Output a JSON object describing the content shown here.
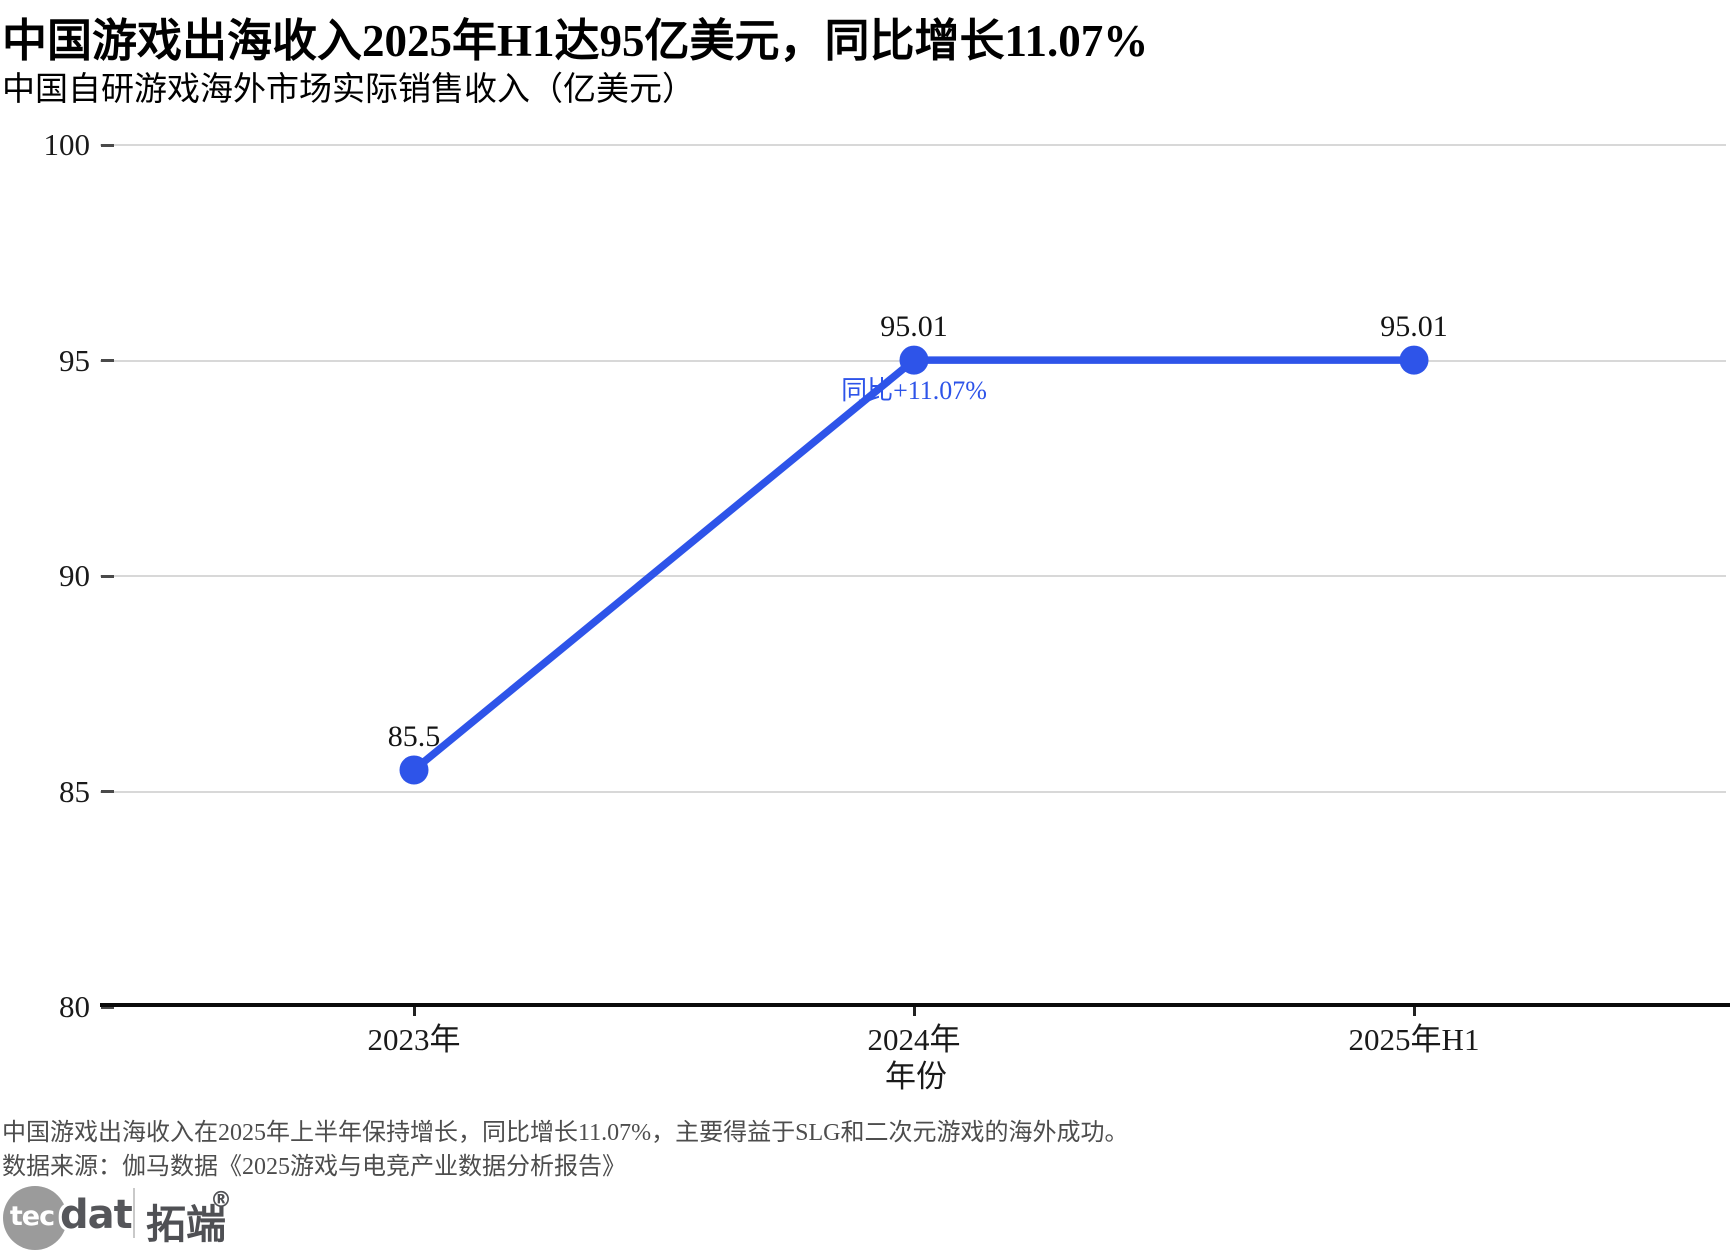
{
  "header": {
    "title": "中国游戏出海收入2025年H1达95亿美元，同比增长11.07%",
    "subtitle": "中国自研游戏海外市场实际销售收入（亿美元）"
  },
  "chart_data": {
    "type": "line",
    "categories": [
      "2023年",
      "2024年",
      "2025年H1"
    ],
    "values": [
      85.5,
      95.01,
      95.01
    ],
    "point_labels": [
      "85.5",
      "95.01",
      "95.01"
    ],
    "xlabel": "年份",
    "ylim": [
      80,
      100
    ],
    "yticks": [
      80,
      85,
      90,
      95,
      100
    ],
    "grid": "horizontal",
    "legend": "none",
    "series_color": "#2E54E9",
    "annotation": {
      "text": "同比+11.07%",
      "anchor_index": 1,
      "color": "#2E54E9"
    }
  },
  "footer": {
    "note": "中国游戏出海收入在2025年上半年保持增长，同比增长11.07%，主要得益于SLG和二次元游戏的海外成功。",
    "source": "数据来源：伽马数据《2025游戏与电竞产业数据分析报告》",
    "logo": {
      "circle_text": "tec",
      "wordmark": "dat",
      "cn_name": "拓端",
      "registered": "®"
    }
  }
}
